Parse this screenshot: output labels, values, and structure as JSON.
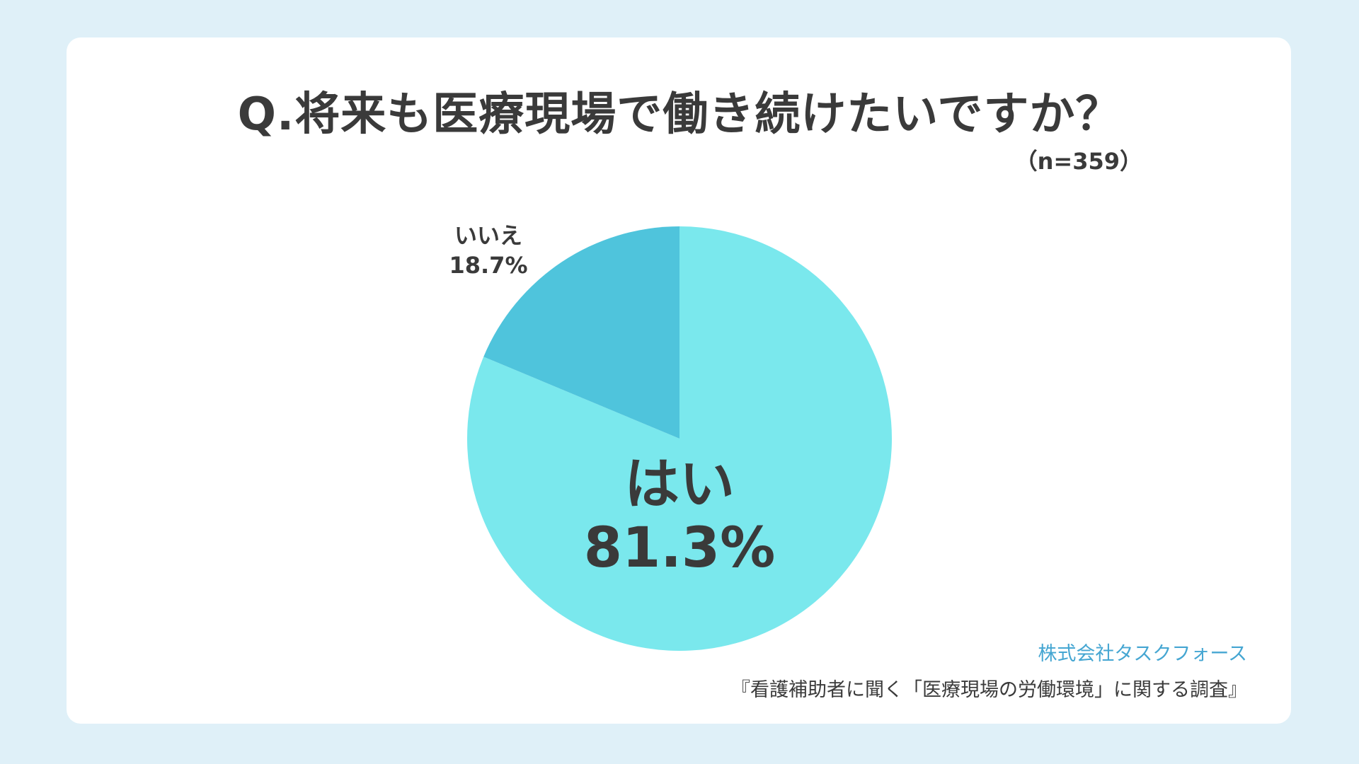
{
  "title": "Q.将来も医療現場で働き続けたいですか？",
  "sample_size": "（n=359）",
  "credit": {
    "company": "株式会社タスクフォース",
    "survey": "『看護補助者に聞く「医療現場の労働環境」に関する調査』"
  },
  "colors": {
    "background": "#dff0f8",
    "card": "#ffffff",
    "yes": "#7ae8ed",
    "no": "#4fc4dc",
    "text": "#3a3a3a",
    "accent": "#45a6d2"
  },
  "chart_data": {
    "type": "pie",
    "title": "Q.将来も医療現場で働き続けたいですか？",
    "slices": [
      {
        "label": "はい",
        "value": 81.3,
        "display": "81.3%",
        "color": "#7ae8ed"
      },
      {
        "label": "いいえ",
        "value": 18.7,
        "display": "18.7%",
        "color": "#4fc4dc"
      }
    ],
    "start_angle": "12 o'clock",
    "direction": "clockwise",
    "legend": "none"
  }
}
